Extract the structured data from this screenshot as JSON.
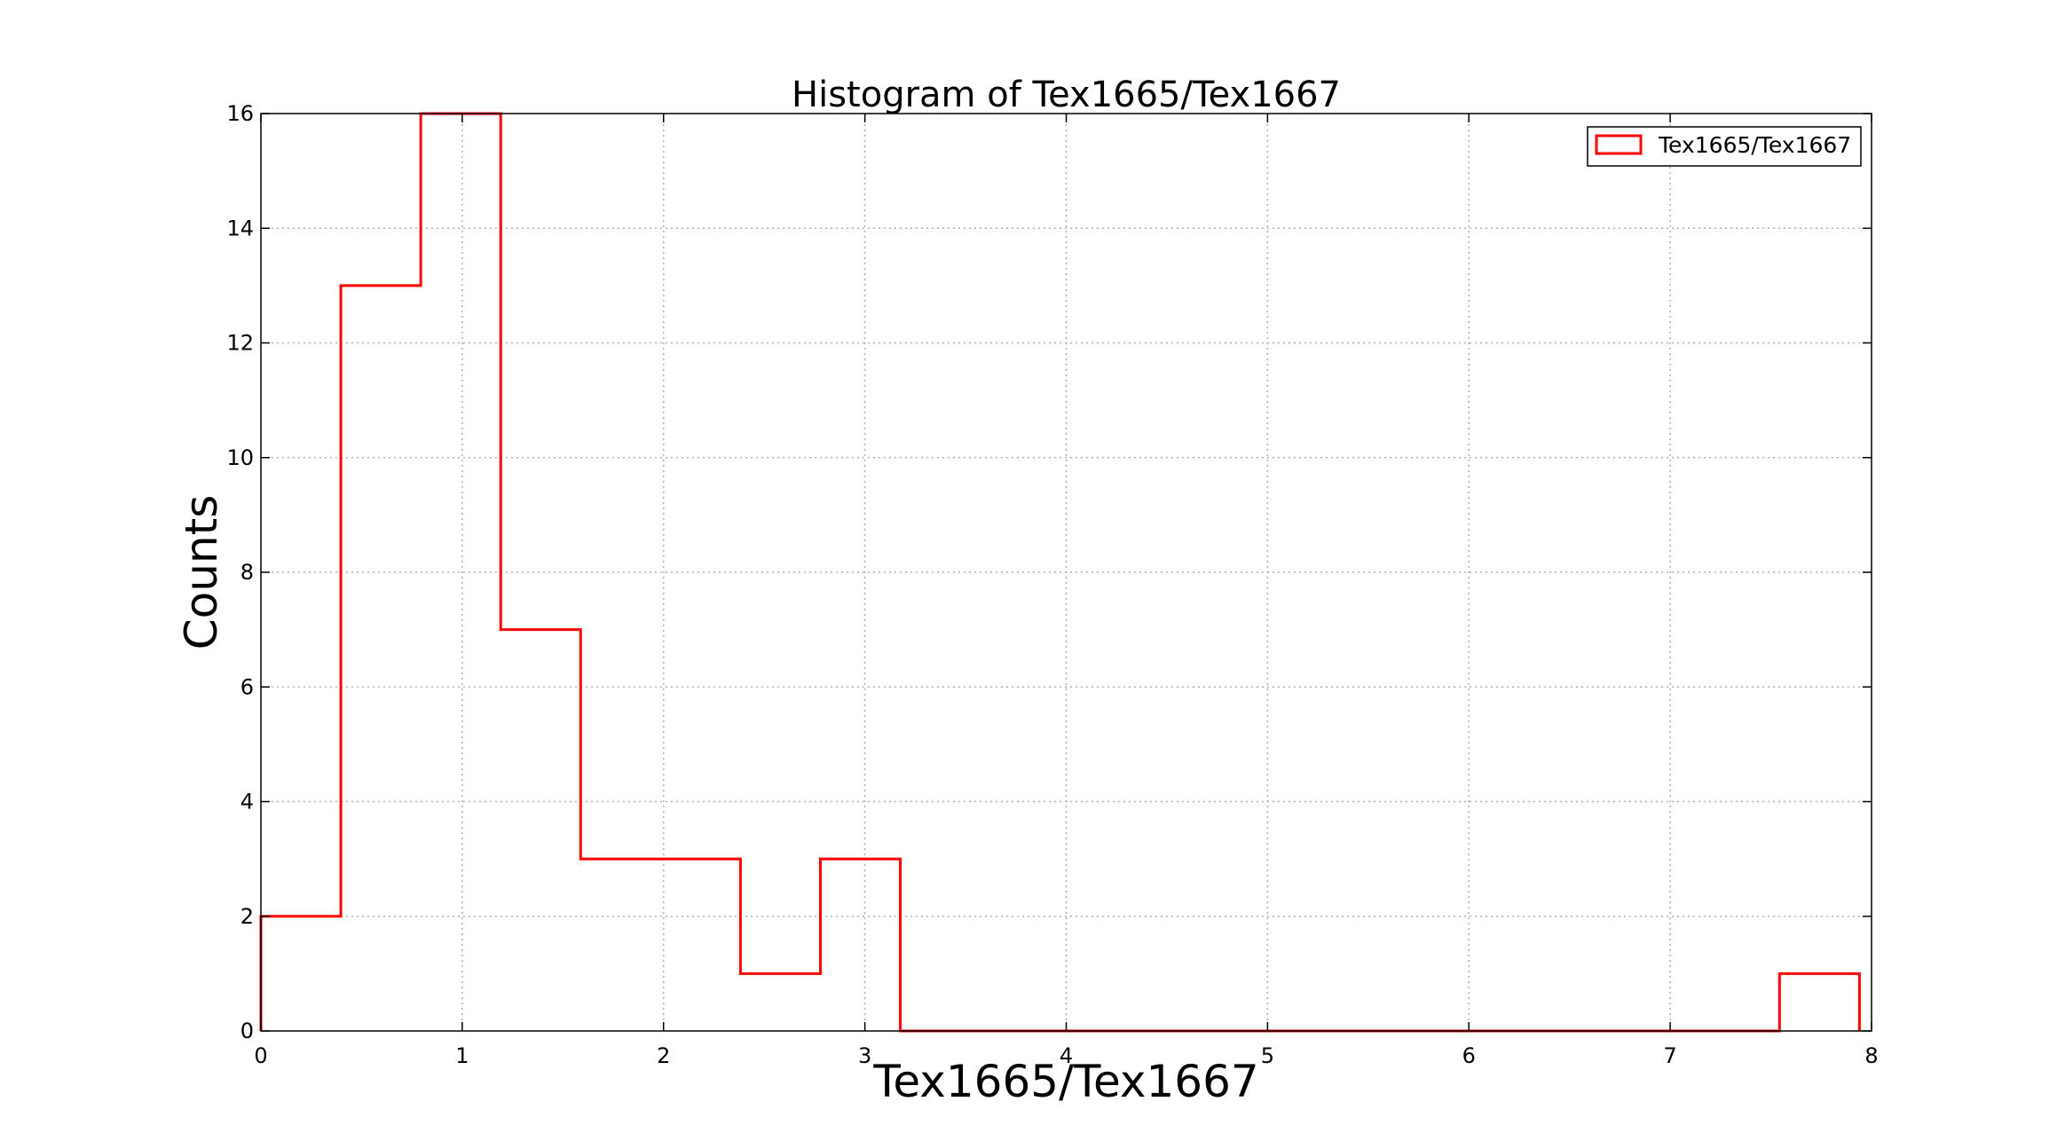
{
  "chart_data": {
    "type": "histogram",
    "title": "Histogram of Tex1665/Tex1667",
    "xlabel": "Tex1665/Tex1667",
    "ylabel": "Counts",
    "xlim": [
      0,
      8
    ],
    "ylim": [
      0,
      16
    ],
    "x_ticks": [
      "0",
      "1",
      "2",
      "3",
      "4",
      "5",
      "6",
      "7",
      "8"
    ],
    "y_ticks": [
      "0",
      "2",
      "4",
      "6",
      "8",
      "10",
      "12",
      "14",
      "16"
    ],
    "grid": true,
    "legend_position": "top-right",
    "series": [
      {
        "name": "Tex1665/Tex1667",
        "color": "#ff0000",
        "style": "step",
        "bin_edges": [
          0,
          0.397,
          0.794,
          1.191,
          1.588,
          1.985,
          2.382,
          2.779,
          3.176,
          3.573,
          3.97,
          4.367,
          4.764,
          5.161,
          5.558,
          5.955,
          6.352,
          6.749,
          7.146,
          7.543,
          7.94
        ],
        "counts": [
          2,
          13,
          16,
          7,
          3,
          3,
          1,
          3,
          0,
          0,
          0,
          0,
          0,
          0,
          0,
          0,
          0,
          0,
          0,
          1
        ]
      }
    ]
  }
}
